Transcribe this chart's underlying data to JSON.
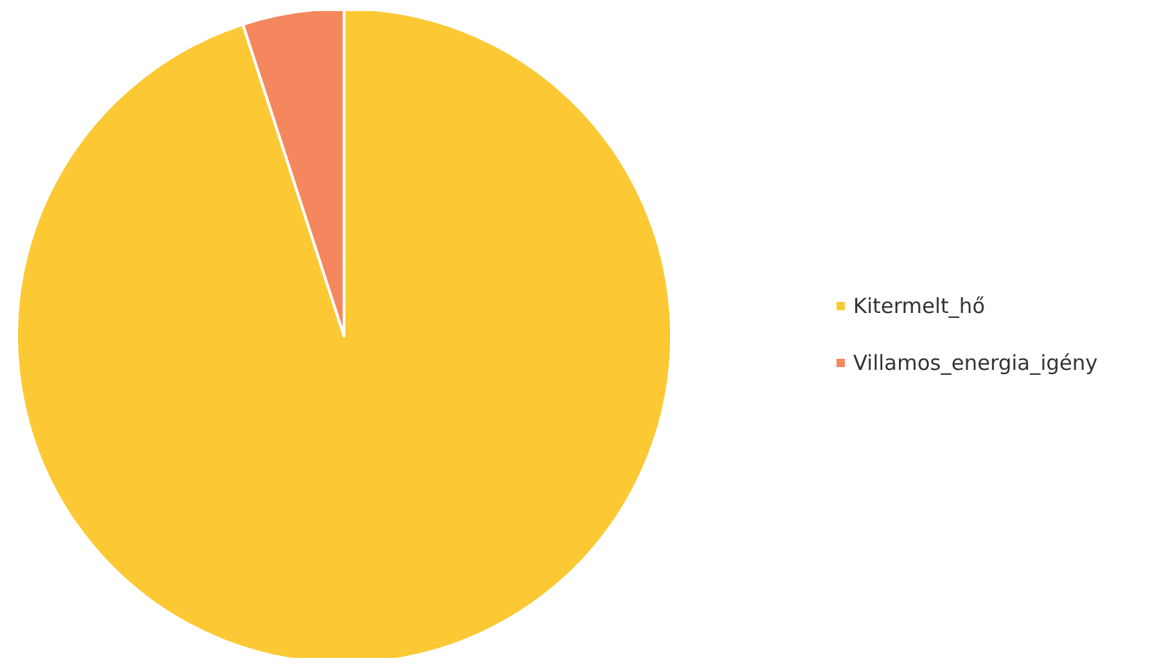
{
  "chart_data": {
    "type": "pie",
    "categories": [
      "Kitermelt_hő",
      "Villamos_energia_igény"
    ],
    "values": [
      95,
      5
    ],
    "colors": [
      "#fcc935",
      "#f4875e"
    ],
    "legend": "right"
  }
}
